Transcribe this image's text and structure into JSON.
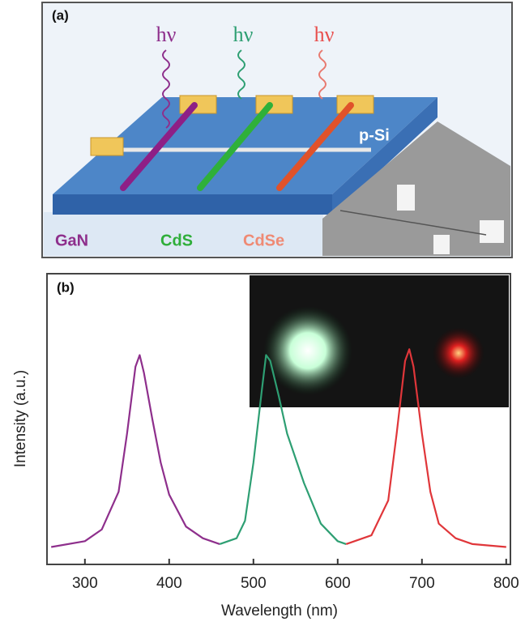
{
  "panel_a": {
    "label": "(a)",
    "photon_labels": [
      "hν",
      "hν",
      "hν"
    ],
    "substrate": "p-Si",
    "materials": [
      "GaN",
      "CdS",
      "CdSe"
    ]
  },
  "chart_data": {
    "type": "line",
    "title": "(b)",
    "x_label": "Wavelength (nm)",
    "y_label": "Intensity (a.u.)",
    "xlim": [
      255,
      805
    ],
    "ylim": [
      0,
      1
    ],
    "xticks": [
      300,
      400,
      500,
      600,
      700,
      800
    ],
    "series": [
      {
        "color": "#8e2f8c",
        "x": [
          260,
          300,
          320,
          340,
          350,
          360,
          365,
          370,
          380,
          390,
          400,
          420,
          440,
          460
        ],
        "values": [
          0.06,
          0.08,
          0.12,
          0.25,
          0.45,
          0.68,
          0.72,
          0.66,
          0.5,
          0.35,
          0.24,
          0.13,
          0.09,
          0.07
        ]
      },
      {
        "color": "#2e9f73",
        "x": [
          460,
          480,
          490,
          500,
          510,
          515,
          520,
          530,
          540,
          560,
          580,
          600,
          610
        ],
        "values": [
          0.07,
          0.09,
          0.15,
          0.35,
          0.6,
          0.72,
          0.7,
          0.58,
          0.45,
          0.28,
          0.14,
          0.08,
          0.07
        ]
      },
      {
        "color": "#e0363a",
        "x": [
          610,
          640,
          660,
          670,
          680,
          685,
          690,
          700,
          710,
          720,
          740,
          760,
          800
        ],
        "values": [
          0.07,
          0.1,
          0.22,
          0.45,
          0.7,
          0.74,
          0.68,
          0.45,
          0.25,
          0.14,
          0.09,
          0.07,
          0.06
        ]
      }
    ]
  }
}
